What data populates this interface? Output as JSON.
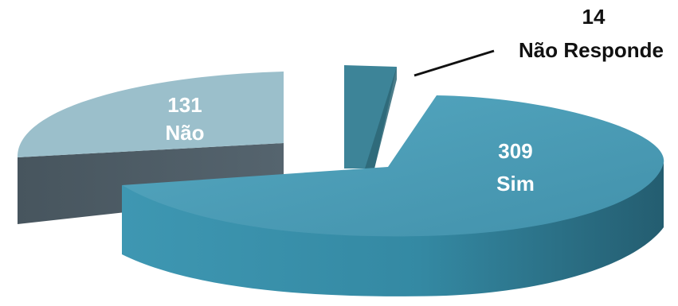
{
  "chart_data": {
    "type": "pie",
    "three_d": true,
    "legend": "none",
    "slices": [
      {
        "key": "sim",
        "label": "Sim",
        "value": 309,
        "color": "#4a9ab4",
        "side_color": "#2e6f86"
      },
      {
        "key": "nao",
        "label": "Não",
        "value": 131,
        "color": "#9bbfcb",
        "side_color": "#4d5d68"
      },
      {
        "key": "nao-responde",
        "label": "Não Responde",
        "value": 14,
        "color": "#3d8498",
        "side_color": "#2d6676"
      }
    ]
  }
}
